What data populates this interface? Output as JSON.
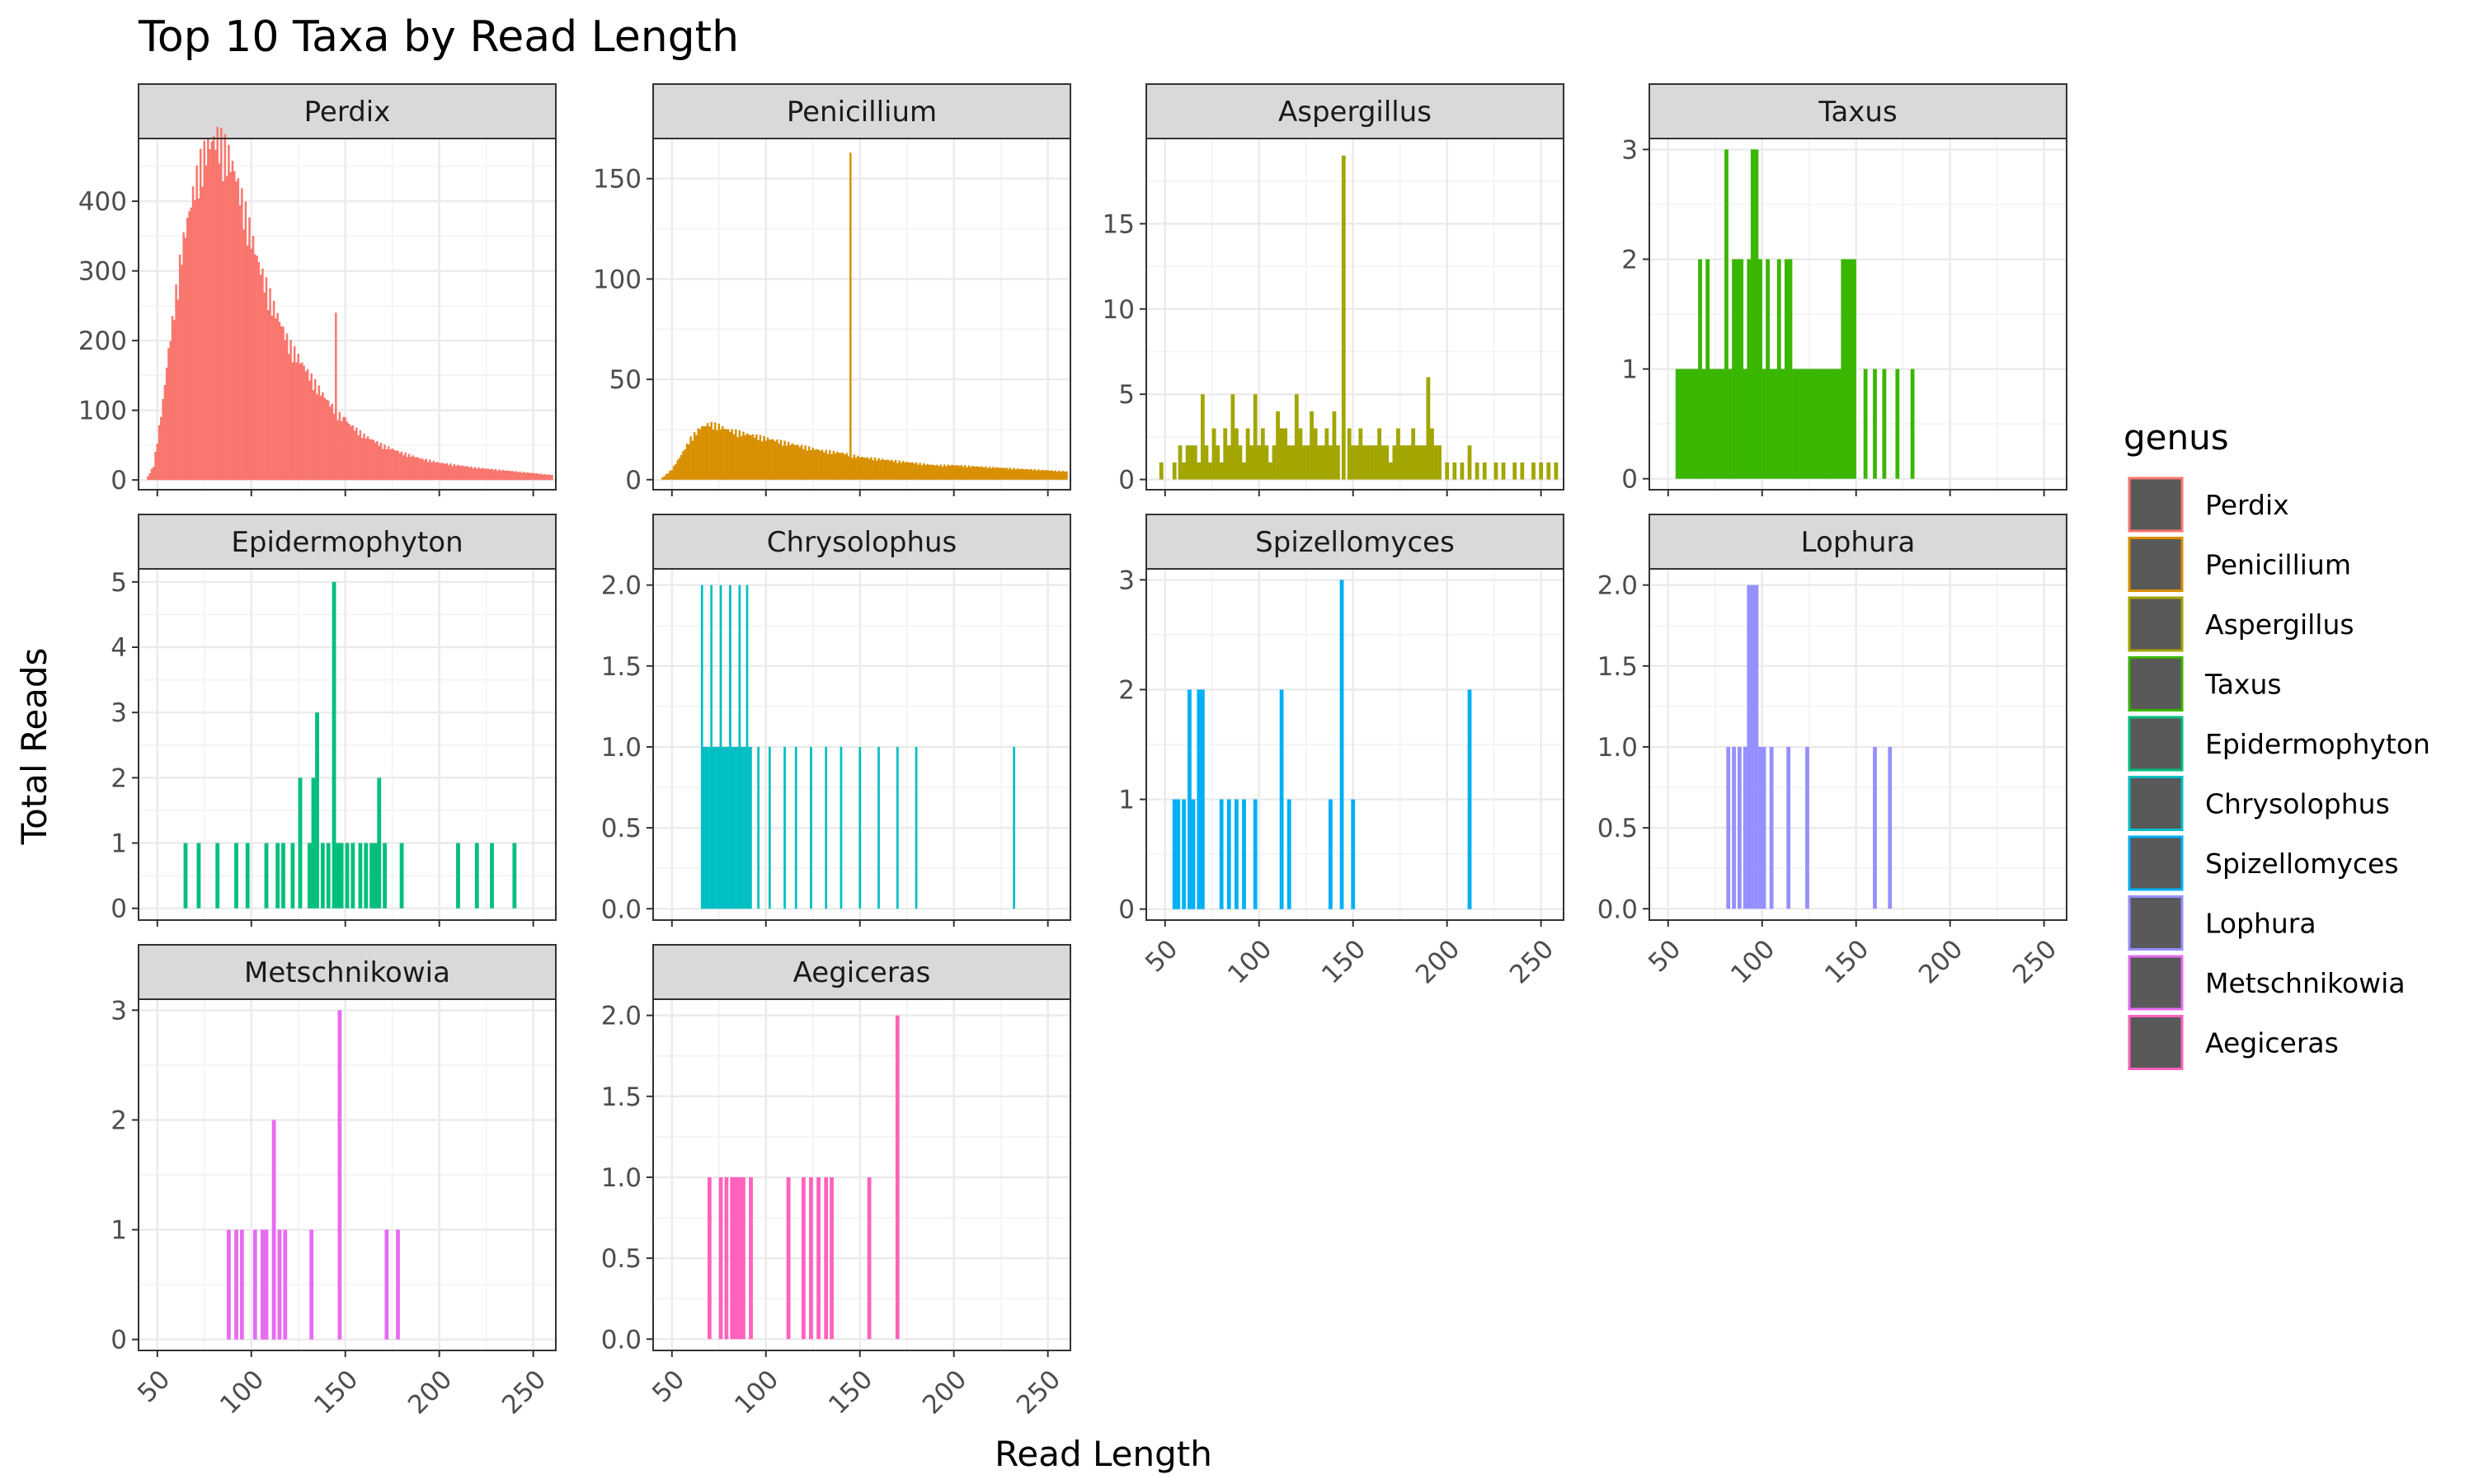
{
  "chart_data": {
    "type": "bar",
    "title": "Top 10 Taxa by Read Length",
    "xlabel": "Read Length",
    "ylabel": "Total Reads",
    "xlim": [
      40,
      262
    ],
    "x_ticks": [
      50,
      100,
      150,
      200,
      250
    ],
    "grid": true,
    "legend": {
      "title": "genus",
      "position": "right",
      "fill": "#595959",
      "entries": [
        {
          "label": "Perdix",
          "color": "#F8766D"
        },
        {
          "label": "Penicillium",
          "color": "#D89000"
        },
        {
          "label": "Aspergillus",
          "color": "#A3A500"
        },
        {
          "label": "Taxus",
          "color": "#39B600"
        },
        {
          "label": "Epidermophyton",
          "color": "#00BF7D"
        },
        {
          "label": "Chrysolophus",
          "color": "#00BFC4"
        },
        {
          "label": "Spizellomyces",
          "color": "#00B0F6"
        },
        {
          "label": "Lophura",
          "color": "#9590FF"
        },
        {
          "label": "Metschnikowia",
          "color": "#E76BF3"
        },
        {
          "label": "Aegiceras",
          "color": "#FF62BC"
        }
      ]
    },
    "panels": [
      {
        "name": "Perdix",
        "color": "#F8766D",
        "ylim": [
          -14,
          490
        ],
        "y_ticks": [
          0,
          100,
          200,
          300,
          400
        ],
        "y_tick_labels": [
          "0",
          "100",
          "200",
          "300",
          "400"
        ],
        "x": [
          [
            45,
            260
          ]
        ],
        "y_points": [
          [
            45,
            5
          ],
          [
            48,
            20
          ],
          [
            50,
            55
          ],
          [
            53,
            110
          ],
          [
            56,
            180
          ],
          [
            60,
            260
          ],
          [
            63,
            320
          ],
          [
            66,
            360
          ],
          [
            70,
            410
          ],
          [
            73,
            440
          ],
          [
            76,
            460
          ],
          [
            79,
            470
          ],
          [
            82,
            475
          ],
          [
            85,
            465
          ],
          [
            88,
            450
          ],
          [
            91,
            430
          ],
          [
            94,
            400
          ],
          [
            97,
            370
          ],
          [
            100,
            340
          ],
          [
            104,
            300
          ],
          [
            108,
            270
          ],
          [
            112,
            240
          ],
          [
            116,
            215
          ],
          [
            120,
            190
          ],
          [
            125,
            170
          ],
          [
            130,
            150
          ],
          [
            135,
            130
          ],
          [
            140,
            112
          ],
          [
            145,
            96
          ],
          [
            150,
            82
          ],
          [
            160,
            62
          ],
          [
            170,
            48
          ],
          [
            180,
            38
          ],
          [
            190,
            30
          ],
          [
            200,
            24
          ],
          [
            220,
            17
          ],
          [
            240,
            12
          ],
          [
            260,
            7
          ]
        ],
        "spikes": [
          [
            145,
            240
          ],
          [
            150,
            90
          ]
        ]
      },
      {
        "name": "Penicillium",
        "color": "#D89000",
        "ylim": [
          -5,
          170
        ],
        "y_ticks": [
          0,
          50,
          100,
          150
        ],
        "y_tick_labels": [
          "0",
          "50",
          "100",
          "150"
        ],
        "x": [
          [
            45,
            260
          ]
        ],
        "y_points": [
          [
            45,
            1
          ],
          [
            50,
            5
          ],
          [
            55,
            12
          ],
          [
            60,
            20
          ],
          [
            65,
            25
          ],
          [
            70,
            27
          ],
          [
            75,
            26
          ],
          [
            80,
            24
          ],
          [
            85,
            23
          ],
          [
            90,
            22
          ],
          [
            95,
            21
          ],
          [
            100,
            20
          ],
          [
            110,
            18
          ],
          [
            120,
            16
          ],
          [
            130,
            14
          ],
          [
            140,
            13
          ],
          [
            150,
            11
          ],
          [
            160,
            10
          ],
          [
            170,
            9
          ],
          [
            180,
            8
          ],
          [
            190,
            7
          ],
          [
            200,
            7
          ],
          [
            220,
            6
          ],
          [
            240,
            5
          ],
          [
            260,
            4
          ]
        ],
        "spikes": [
          [
            145,
            163
          ]
        ]
      },
      {
        "name": "Aspergillus",
        "color": "#A3A500",
        "ylim": [
          -0.6,
          20
        ],
        "y_ticks": [
          0,
          5,
          10,
          15
        ],
        "y_tick_labels": [
          "0",
          "5",
          "10",
          "15"
        ],
        "x": [
          48,
          55,
          58,
          60,
          62,
          64,
          66,
          68,
          70,
          72,
          74,
          76,
          78,
          80,
          82,
          84,
          86,
          88,
          90,
          92,
          94,
          96,
          98,
          100,
          102,
          104,
          106,
          108,
          110,
          112,
          114,
          116,
          118,
          120,
          122,
          124,
          126,
          128,
          130,
          132,
          134,
          136,
          138,
          140,
          142,
          145,
          148,
          150,
          152,
          154,
          156,
          158,
          160,
          162,
          164,
          166,
          168,
          170,
          172,
          174,
          176,
          178,
          180,
          182,
          184,
          186,
          188,
          190,
          192,
          194,
          196,
          200,
          204,
          208,
          212,
          216,
          220,
          226,
          230,
          236,
          240,
          246,
          250,
          254,
          258
        ],
        "values": [
          1,
          1,
          2,
          1,
          2,
          2,
          2,
          1,
          5,
          2,
          1,
          3,
          2,
          1,
          3,
          2,
          5,
          3,
          2,
          1,
          3,
          2,
          5,
          2,
          3,
          2,
          1,
          2,
          4,
          3,
          3,
          2,
          2,
          5,
          3,
          2,
          2,
          4,
          3,
          2,
          2,
          3,
          2,
          4,
          2,
          19,
          3,
          2,
          2,
          3,
          2,
          2,
          2,
          2,
          3,
          2,
          2,
          1,
          2,
          3,
          2,
          2,
          2,
          3,
          2,
          2,
          2,
          6,
          3,
          2,
          2,
          1,
          1,
          1,
          2,
          1,
          1,
          1,
          1,
          1,
          1,
          1,
          1,
          1,
          1
        ]
      },
      {
        "name": "Taxus",
        "color": "#39B600",
        "ylim": [
          -0.1,
          3.1
        ],
        "y_ticks": [
          0,
          1,
          2,
          3
        ],
        "y_tick_labels": [
          "0",
          "1",
          "2",
          "3"
        ],
        "x": [
          55,
          57,
          59,
          61,
          63,
          65,
          67,
          69,
          71,
          73,
          75,
          77,
          79,
          81,
          83,
          85,
          87,
          89,
          91,
          93,
          95,
          97,
          99,
          101,
          103,
          105,
          107,
          109,
          111,
          113,
          115,
          117,
          119,
          121,
          123,
          125,
          127,
          129,
          131,
          133,
          135,
          137,
          139,
          141,
          143,
          145,
          147,
          149,
          155,
          160,
          165,
          172,
          180
        ],
        "values": [
          1,
          1,
          1,
          1,
          1,
          1,
          2,
          1,
          2,
          1,
          1,
          1,
          1,
          3,
          1,
          2,
          2,
          2,
          1,
          2,
          3,
          3,
          2,
          1,
          2,
          1,
          1,
          2,
          1,
          2,
          2,
          1,
          1,
          1,
          1,
          1,
          1,
          1,
          1,
          1,
          1,
          1,
          1,
          1,
          2,
          2,
          2,
          2,
          1,
          1,
          1,
          1,
          1
        ]
      },
      {
        "name": "Epidermophyton",
        "color": "#00BF7D",
        "ylim": [
          -0.18,
          5.2
        ],
        "y_ticks": [
          0,
          1,
          2,
          3,
          4,
          5
        ],
        "y_tick_labels": [
          "0",
          "1",
          "2",
          "3",
          "4",
          "5"
        ],
        "x": [
          65,
          72,
          82,
          92,
          98,
          108,
          114,
          117,
          122,
          126,
          131,
          133,
          135,
          138,
          141,
          144,
          146,
          148,
          151,
          154,
          158,
          161,
          164,
          166,
          168,
          171,
          180,
          210,
          220,
          228,
          240
        ],
        "values": [
          1,
          1,
          1,
          1,
          1,
          1,
          1,
          1,
          1,
          2,
          1,
          2,
          3,
          1,
          1,
          5,
          1,
          1,
          1,
          1,
          1,
          1,
          1,
          1,
          2,
          1,
          1,
          1,
          1,
          1,
          1
        ]
      },
      {
        "name": "Chrysolophus",
        "color": "#00BFC4",
        "ylim": [
          -0.07,
          2.1
        ],
        "y_ticks": [
          0,
          0.5,
          1,
          1.5,
          2
        ],
        "y_tick_labels": [
          "0.0",
          "0.5",
          "1.0",
          "1.5",
          "2.0"
        ],
        "x": [
          [
            66,
            92,
            1
          ]
        ],
        "x_list": [
          66,
          71,
          76,
          81,
          86,
          90,
          96,
          102,
          110,
          116,
          124,
          132,
          140,
          150,
          160,
          170,
          180,
          232
        ],
        "values": [
          2,
          2,
          2,
          2,
          2,
          2,
          1,
          1,
          1,
          1,
          1,
          1,
          1,
          1,
          1,
          1,
          1,
          1
        ],
        "filled_range": [
          66,
          92
        ]
      },
      {
        "name": "Spizellomyces",
        "color": "#00B0F6",
        "ylim": [
          -0.1,
          3.1
        ],
        "y_ticks": [
          0,
          1,
          2,
          3
        ],
        "y_tick_labels": [
          "0",
          "1",
          "2",
          "3"
        ],
        "x": [
          55,
          57,
          60,
          63,
          65,
          68,
          70,
          80,
          84,
          88,
          92,
          98,
          112,
          116,
          138,
          144,
          150,
          212
        ],
        "values": [
          1,
          1,
          1,
          2,
          1,
          2,
          2,
          1,
          1,
          1,
          1,
          1,
          2,
          1,
          1,
          3,
          1,
          2
        ]
      },
      {
        "name": "Lophura",
        "color": "#9590FF",
        "ylim": [
          -0.07,
          2.1
        ],
        "y_ticks": [
          0,
          0.5,
          1,
          1.5,
          2
        ],
        "y_tick_labels": [
          "0.0",
          "0.5",
          "1.0",
          "1.5",
          "2.0"
        ],
        "x": [
          82,
          85,
          88,
          91,
          93,
          95,
          97,
          99,
          101,
          105,
          114,
          124,
          160,
          168
        ],
        "values": [
          1,
          1,
          1,
          1,
          2,
          2,
          2,
          1,
          1,
          1,
          1,
          1,
          1,
          1
        ]
      },
      {
        "name": "Metschnikowia",
        "color": "#E76BF3",
        "ylim": [
          -0.1,
          3.1
        ],
        "y_ticks": [
          0,
          1,
          2,
          3
        ],
        "y_tick_labels": [
          "0",
          "1",
          "2",
          "3"
        ],
        "x": [
          88,
          92,
          95,
          102,
          106,
          108,
          112,
          115,
          118,
          132,
          147,
          172,
          178
        ],
        "values": [
          1,
          1,
          1,
          1,
          1,
          1,
          2,
          1,
          1,
          1,
          3,
          1,
          1
        ]
      },
      {
        "name": "Aegiceras",
        "color": "#FF62BC",
        "ylim": [
          -0.07,
          2.1
        ],
        "y_ticks": [
          0,
          0.5,
          1,
          1.5,
          2
        ],
        "y_tick_labels": [
          "0.0",
          "0.5",
          "1.0",
          "1.5",
          "2.0"
        ],
        "x": [
          70,
          76,
          79,
          82,
          84,
          86,
          88,
          92,
          112,
          120,
          124,
          128,
          132,
          135,
          155,
          170
        ],
        "values": [
          1,
          1,
          1,
          1,
          1,
          1,
          1,
          1,
          1,
          1,
          1,
          1,
          1,
          1,
          1,
          2
        ]
      }
    ]
  }
}
